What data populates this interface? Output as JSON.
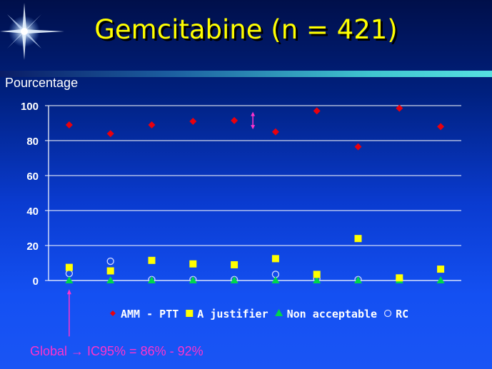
{
  "slide": {
    "title": "Gemcitabine (n = 421)",
    "ylabel": "Pourcentage",
    "footer": "Global → IC95% = 86% - 92%"
  },
  "chart_data": {
    "type": "scatter",
    "title": "Gemcitabine (n = 421)",
    "ylabel": "Pourcentage",
    "xlabel": "",
    "ylim": [
      0,
      100
    ],
    "yticks": [
      0,
      20,
      40,
      60,
      80,
      100
    ],
    "grid": true,
    "legend_position": "bottom",
    "x": [
      1,
      2,
      3,
      4,
      5,
      6,
      7,
      8,
      9,
      10
    ],
    "series": [
      {
        "name": "AMM - PTT",
        "marker": "diamond",
        "color": "#e8000d",
        "values": [
          89,
          84,
          89,
          91,
          91.5,
          85,
          97,
          76.5,
          98.5,
          88
        ]
      },
      {
        "name": "A justifier",
        "marker": "square",
        "color": "#ffff00",
        "values": [
          7.5,
          5.5,
          11.5,
          9.5,
          9,
          12.5,
          3.5,
          24,
          1.5,
          6.5
        ]
      },
      {
        "name": "Non acceptable",
        "marker": "triangle",
        "color": "#00d64b",
        "values": [
          0,
          0,
          0,
          0,
          0,
          0,
          0,
          0,
          0,
          0
        ]
      },
      {
        "name": "RC",
        "marker": "circle",
        "color": "#cfd8ff",
        "values": [
          4,
          11,
          0.5,
          0.5,
          0.5,
          3.5,
          1,
          0.5,
          0.5,
          null
        ]
      }
    ],
    "annotations": [
      {
        "type": "double-arrow",
        "at_x": 5.45,
        "from": 86.5,
        "to": 96.5,
        "color": "#ff33cc"
      },
      {
        "type": "arrow-up",
        "at_x": 1,
        "from": -32,
        "to": -5,
        "color": "#ff33cc"
      }
    ]
  }
}
